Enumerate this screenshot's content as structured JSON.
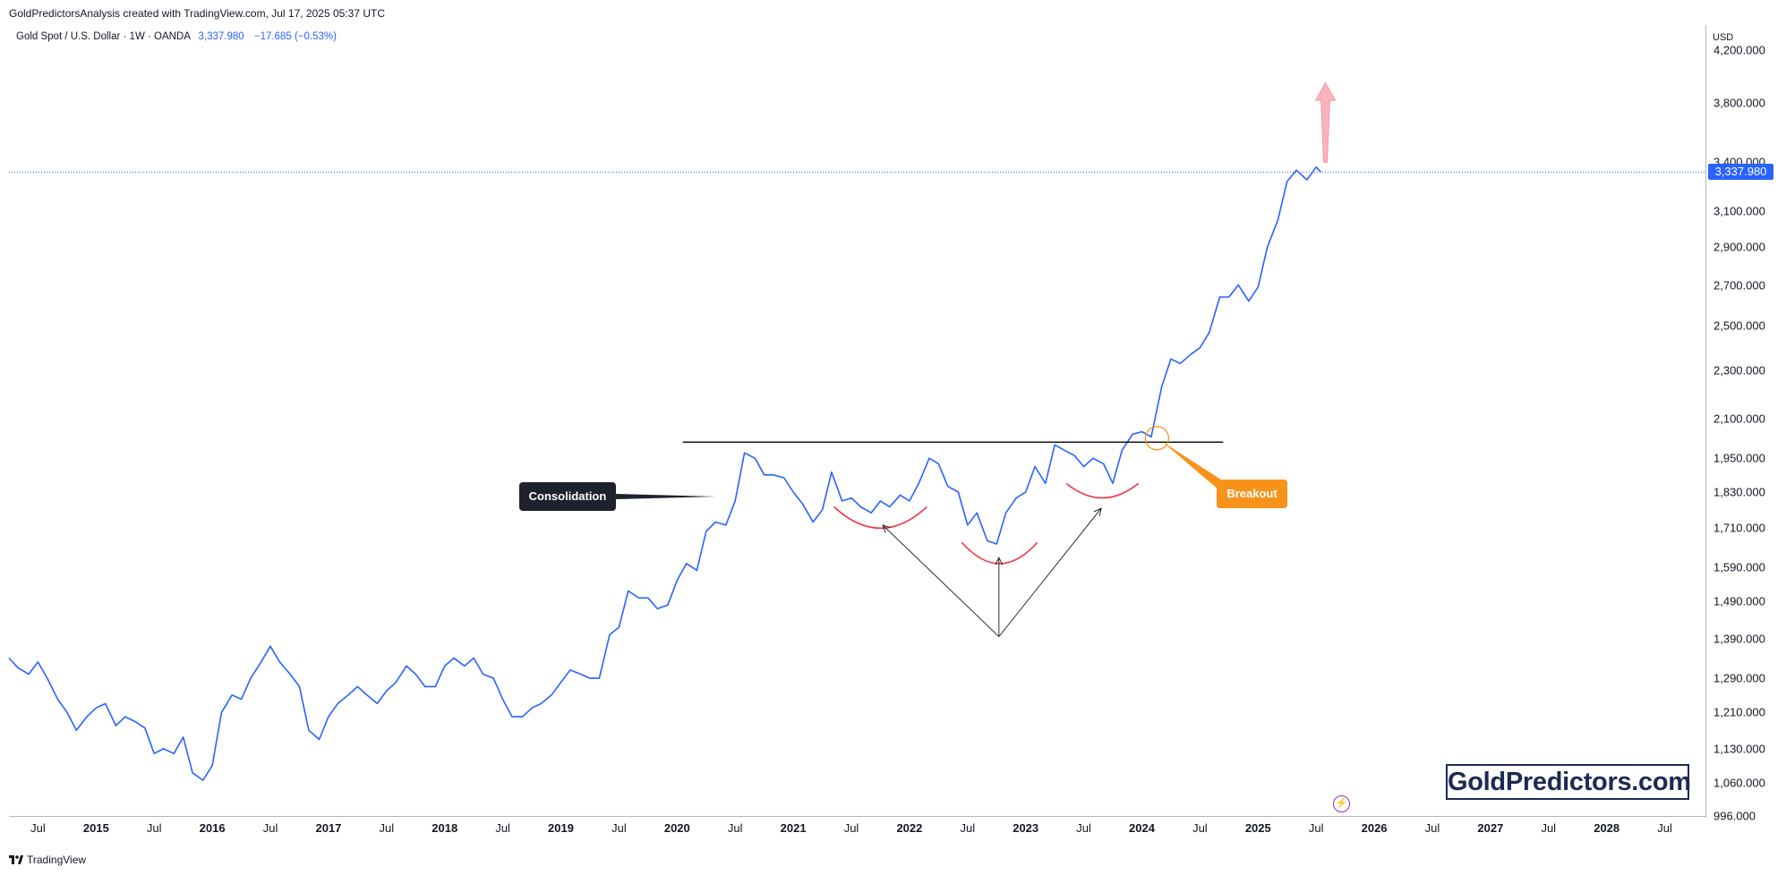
{
  "caption": "GoldPredictorsAnalysis created with TradingView.com, Jul 17, 2025 05:37 UTC",
  "legend": {
    "symbol": "Gold Spot / U.S. Dollar · 1W · OANDA",
    "price": "3,337.980",
    "change": "−17.685 (−0.53%)"
  },
  "currency": "USD",
  "last_price_label": "3,337.980",
  "watermark": "GoldPredictors.com",
  "footer_brand": "TradingView",
  "annotations": {
    "consolidation": "Consolidation",
    "breakout": "Breakout"
  },
  "colors": {
    "series": "#2962ff",
    "resistance": "#000000",
    "cup_arcs": "#f23645",
    "breakout": "#f7931a",
    "target_arrow": "#f8b4bd"
  },
  "chart_data": {
    "type": "line",
    "title": "Gold Spot / U.S. Dollar · 1W · OANDA",
    "xlabel": "",
    "ylabel": "",
    "ylim": [
      996,
      4400
    ],
    "y_scale": "log",
    "xlim": [
      2014.25,
      2028.85
    ],
    "grid": false,
    "y_ticks": [
      996,
      1060,
      1130,
      1210,
      1290,
      1390,
      1490,
      1590,
      1710,
      1830,
      1950,
      2100,
      2300,
      2500,
      2700,
      2900,
      3100,
      3400,
      3800,
      4200
    ],
    "y_tick_labels": [
      "996.000",
      "1,060.000",
      "1,130.000",
      "1,210.000",
      "1,290.000",
      "1,390.000",
      "1,490.000",
      "1,590.000",
      "1,710.000",
      "1,830.000",
      "1,950.000",
      "2,100.000",
      "2,300.000",
      "2,500.000",
      "2,700.000",
      "2,900.000",
      "3,100.000",
      "3,400.000",
      "3,800.000",
      "4,200.000"
    ],
    "x_ticks": [
      {
        "label": "Jul",
        "year": false
      },
      {
        "label": "2015",
        "year": true
      },
      {
        "label": "Jul",
        "year": false
      },
      {
        "label": "2016",
        "year": true
      },
      {
        "label": "Jul",
        "year": false
      },
      {
        "label": "2017",
        "year": true
      },
      {
        "label": "Jul",
        "year": false
      },
      {
        "label": "2018",
        "year": true
      },
      {
        "label": "Jul",
        "year": false
      },
      {
        "label": "2019",
        "year": true
      },
      {
        "label": "Jul",
        "year": false
      },
      {
        "label": "2020",
        "year": true
      },
      {
        "label": "Jul",
        "year": false
      },
      {
        "label": "2021",
        "year": true
      },
      {
        "label": "Jul",
        "year": false
      },
      {
        "label": "2022",
        "year": true
      },
      {
        "label": "Jul",
        "year": false
      },
      {
        "label": "2023",
        "year": true
      },
      {
        "label": "Jul",
        "year": false
      },
      {
        "label": "2024",
        "year": true
      },
      {
        "label": "Jul",
        "year": false
      },
      {
        "label": "2025",
        "year": true
      },
      {
        "label": "Jul",
        "year": false
      },
      {
        "label": "2026",
        "year": true
      },
      {
        "label": "Jul",
        "year": false
      },
      {
        "label": "2027",
        "year": true
      },
      {
        "label": "Jul",
        "year": false
      },
      {
        "label": "2028",
        "year": true
      },
      {
        "label": "Jul",
        "year": false
      }
    ],
    "x_tick_dates": [
      2014.5,
      2015.0,
      2015.5,
      2016.0,
      2016.5,
      2017.0,
      2017.5,
      2018.0,
      2018.5,
      2019.0,
      2019.5,
      2020.0,
      2020.5,
      2021.0,
      2021.5,
      2022.0,
      2022.5,
      2023.0,
      2023.5,
      2024.0,
      2024.5,
      2025.0,
      2025.5,
      2026.0,
      2026.5,
      2027.0,
      2027.5,
      2028.0,
      2028.5
    ],
    "series": [
      {
        "x": [
          2014.25,
          2014.33,
          2014.42,
          2014.5,
          2014.58,
          2014.67,
          2014.75,
          2014.83,
          2014.92,
          2015.0,
          2015.08,
          2015.17,
          2015.25,
          2015.33,
          2015.42,
          2015.5,
          2015.58,
          2015.67,
          2015.75,
          2015.83,
          2015.92,
          2016.0,
          2016.08,
          2016.17,
          2016.25,
          2016.33,
          2016.42,
          2016.5,
          2016.58,
          2016.67,
          2016.75,
          2016.83,
          2016.92,
          2017.0,
          2017.08,
          2017.17,
          2017.25,
          2017.33,
          2017.42,
          2017.5,
          2017.58,
          2017.67,
          2017.75,
          2017.83,
          2017.92,
          2018.0,
          2018.08,
          2018.17,
          2018.25,
          2018.33,
          2018.42,
          2018.5,
          2018.58,
          2018.67,
          2018.75,
          2018.83,
          2018.92,
          2019.0,
          2019.08,
          2019.17,
          2019.25,
          2019.33,
          2019.42,
          2019.5,
          2019.58,
          2019.67,
          2019.75,
          2019.83,
          2019.92,
          2020.0,
          2020.08,
          2020.17,
          2020.25,
          2020.33,
          2020.42,
          2020.5,
          2020.58,
          2020.67,
          2020.75,
          2020.83,
          2020.92,
          2021.0,
          2021.08,
          2021.17,
          2021.25,
          2021.33,
          2021.42,
          2021.5,
          2021.58,
          2021.67,
          2021.75,
          2021.83,
          2021.92,
          2022.0,
          2022.08,
          2022.17,
          2022.25,
          2022.33,
          2022.42,
          2022.5,
          2022.58,
          2022.67,
          2022.75,
          2022.83,
          2022.92,
          2023.0,
          2023.08,
          2023.17,
          2023.25,
          2023.33,
          2023.42,
          2023.5,
          2023.58,
          2023.67,
          2023.75,
          2023.83,
          2023.92,
          2024.0,
          2024.08,
          2024.17,
          2024.25,
          2024.33,
          2024.42,
          2024.5,
          2024.58,
          2024.67,
          2024.75,
          2024.83,
          2024.92,
          2025.0,
          2025.08,
          2025.17,
          2025.25,
          2025.33,
          2025.42,
          2025.5,
          2025.54
        ],
        "values": [
          1340,
          1315,
          1300,
          1330,
          1290,
          1240,
          1210,
          1170,
          1200,
          1220,
          1230,
          1180,
          1200,
          1190,
          1175,
          1120,
          1130,
          1120,
          1155,
          1080,
          1065,
          1095,
          1210,
          1250,
          1240,
          1290,
          1330,
          1370,
          1330,
          1300,
          1270,
          1170,
          1150,
          1200,
          1230,
          1250,
          1270,
          1250,
          1230,
          1260,
          1280,
          1320,
          1300,
          1270,
          1270,
          1320,
          1340,
          1320,
          1340,
          1300,
          1290,
          1240,
          1200,
          1200,
          1220,
          1230,
          1250,
          1280,
          1310,
          1300,
          1290,
          1290,
          1400,
          1420,
          1520,
          1500,
          1500,
          1470,
          1480,
          1550,
          1600,
          1580,
          1700,
          1730,
          1720,
          1800,
          1970,
          1950,
          1890,
          1890,
          1880,
          1830,
          1790,
          1730,
          1770,
          1900,
          1800,
          1810,
          1780,
          1760,
          1800,
          1780,
          1820,
          1800,
          1860,
          1950,
          1930,
          1850,
          1830,
          1720,
          1760,
          1670,
          1660,
          1760,
          1810,
          1830,
          1920,
          1860,
          2000,
          1980,
          1960,
          1920,
          1950,
          1930,
          1860,
          1980,
          2040,
          2050,
          2030,
          2230,
          2350,
          2330,
          2370,
          2400,
          2470,
          2640,
          2640,
          2700,
          2620,
          2690,
          2900,
          3050,
          3280,
          3350,
          3290,
          3370,
          3338
        ]
      }
    ],
    "last_value": 3337.98,
    "last_change": -17.685,
    "last_change_pct": -0.53,
    "resistance_level": 2010,
    "target_arrow": true
  }
}
